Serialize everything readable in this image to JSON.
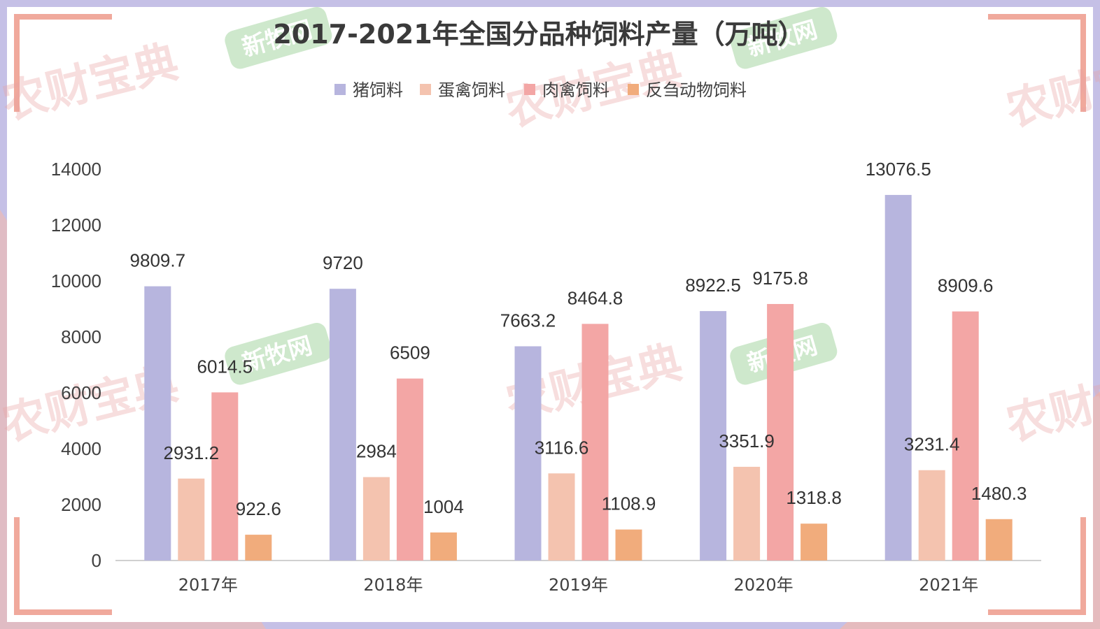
{
  "watermarks": {
    "brand_red": "农财宝典",
    "brand_green": "新牧网"
  },
  "colors": {
    "pig": "#b7b5de",
    "layer": "#f4c3af",
    "broiler": "#f3a6a5",
    "ruminant": "#f1ac7c",
    "frame_purple": "#c5c0e6",
    "frame_pink": "#f2b9ad",
    "frame_accent": "#f0a99c"
  },
  "chart_data": {
    "type": "bar",
    "title": "2017-2021年全国分品种饲料产量（万吨）",
    "categories": [
      "2017年",
      "2018年",
      "2019年",
      "2020年",
      "2021年"
    ],
    "series": [
      {
        "name": "猪饲料",
        "values": [
          9809.7,
          9720,
          7663.2,
          8922.5,
          13076.5
        ]
      },
      {
        "name": "蛋禽饲料",
        "values": [
          2931.2,
          2984,
          3116.6,
          3351.9,
          3231.4
        ]
      },
      {
        "name": "肉禽饲料",
        "values": [
          6014.5,
          6509,
          8464.8,
          9175.8,
          8909.6
        ]
      },
      {
        "name": "反刍动物饲料",
        "values": [
          922.6,
          1004,
          1108.9,
          1318.8,
          1480.3
        ]
      }
    ],
    "ylim": [
      0,
      14000
    ],
    "yticks": [
      0,
      2000,
      4000,
      6000,
      8000,
      10000,
      12000,
      14000
    ],
    "xlabel": "",
    "ylabel": "",
    "grid": false,
    "legend": "top"
  }
}
